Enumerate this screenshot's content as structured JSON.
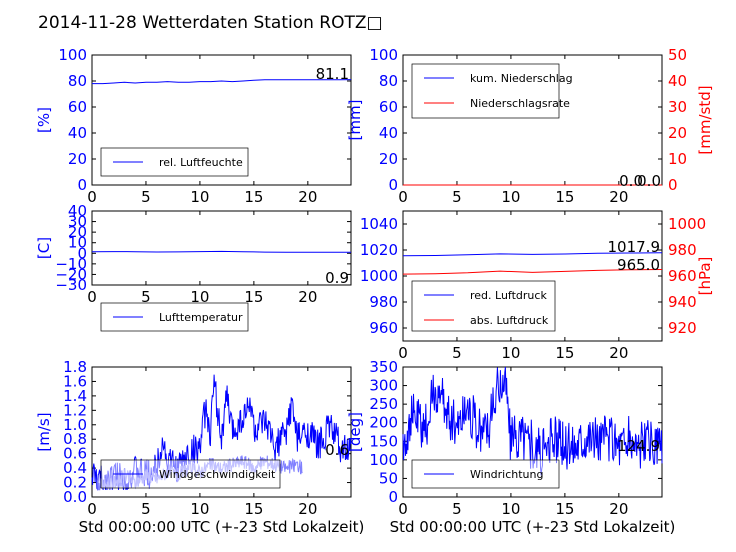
{
  "figure_title": "2014-11-28 Wetterdaten Station ROTZ□",
  "colors": {
    "primary": "#0000ff",
    "secondary": "#ff0000",
    "light": "#8080ff"
  },
  "chart_data": [
    {
      "type": "line",
      "ylabel": "[%]",
      "xlabel": "",
      "xlim": [
        0,
        24
      ],
      "ylim": [
        0,
        100
      ],
      "xticks": [
        "0",
        "5",
        "10",
        "15",
        "20"
      ],
      "yticks": [
        "0",
        "20",
        "40",
        "60",
        "80",
        "100"
      ],
      "last_labels": [
        "81.1"
      ],
      "legend_position": "lower-left",
      "series": [
        {
          "name": "rel. Luftfeuchte",
          "color": "#0000ff",
          "x": [
            0,
            1,
            2,
            3,
            4,
            5,
            6,
            7,
            8,
            9,
            10,
            11,
            12,
            13,
            14,
            15,
            16,
            17,
            18,
            19,
            20,
            21,
            22,
            23,
            24
          ],
          "values": [
            78,
            78,
            78.5,
            79,
            78.5,
            79,
            79,
            79.5,
            79,
            79,
            79.5,
            79.5,
            80,
            79.5,
            80,
            80.5,
            81,
            81,
            81,
            81,
            81,
            81,
            81,
            81,
            81.1
          ]
        }
      ]
    },
    {
      "type": "line",
      "ylabel": "[mm]",
      "ylabel_right": "[mm/std]",
      "xlabel": "",
      "xlim": [
        0,
        24
      ],
      "ylim": [
        0,
        100
      ],
      "ylim_right": [
        0,
        50
      ],
      "xticks": [
        "0",
        "5",
        "10",
        "15",
        "20"
      ],
      "yticks": [
        "0",
        "20",
        "40",
        "60",
        "80",
        "100"
      ],
      "yticks_right": [
        "0",
        "10",
        "20",
        "30",
        "40",
        "50"
      ],
      "last_labels": [
        "0.0",
        "0.0"
      ],
      "legend_position": "upper-left",
      "series": [
        {
          "name": "kum. Niederschlag",
          "color": "#0000ff",
          "axis": "left",
          "x": [
            0,
            24
          ],
          "values": [
            0,
            0
          ]
        },
        {
          "name": "Niederschlagsrate",
          "color": "#ff0000",
          "axis": "right",
          "x": [
            0,
            24
          ],
          "values": [
            0,
            0
          ]
        }
      ]
    },
    {
      "type": "line",
      "ylabel": "[C]",
      "xlabel": "",
      "xlim": [
        0,
        24
      ],
      "ylim": [
        -30,
        40
      ],
      "xticks": [
        "0",
        "5",
        "10",
        "15",
        "20"
      ],
      "yticks": [
        "−30",
        "−20",
        "−10",
        "0",
        "10",
        "20",
        "30",
        "40"
      ],
      "last_labels": [
        "0.9"
      ],
      "legend_position": "lower-left",
      "series": [
        {
          "name": "Lufttemperatur",
          "color": "#0000ff",
          "x": [
            0,
            2,
            4,
            6,
            8,
            10,
            12,
            14,
            16,
            18,
            20,
            22,
            24
          ],
          "values": [
            1.5,
            1.6,
            1.5,
            1.2,
            1.3,
            1.6,
            1.8,
            1.5,
            1.1,
            1.0,
            0.9,
            0.9,
            0.9
          ]
        }
      ]
    },
    {
      "type": "line",
      "ylabel": "",
      "ylabel_right": "[hPa]",
      "xlabel": "",
      "xlim": [
        0,
        24
      ],
      "ylim": [
        950,
        1050
      ],
      "ylim_right": [
        910,
        1010
      ],
      "xticks": [
        "0",
        "5",
        "10",
        "15",
        "20"
      ],
      "yticks": [
        "960",
        "980",
        "1000",
        "1020",
        "1040"
      ],
      "yticks_right": [
        "920",
        "940",
        "960",
        "980",
        "1000"
      ],
      "last_labels": [
        "1017.9",
        "965.0"
      ],
      "legend_position": "lower-left",
      "series": [
        {
          "name": "red. Luftdruck",
          "color": "#0000ff",
          "axis": "left",
          "x": [
            0,
            3,
            6,
            9,
            12,
            15,
            18,
            21,
            24
          ],
          "values": [
            1015.5,
            1015.8,
            1016.3,
            1017,
            1016.6,
            1016.9,
            1017.5,
            1017.7,
            1017.9
          ]
        },
        {
          "name": "abs. Luftdruck",
          "color": "#ff0000",
          "axis": "right",
          "x": [
            0,
            3,
            6,
            9,
            12,
            15,
            18,
            21,
            24
          ],
          "values": [
            961.5,
            961.8,
            962.5,
            963.8,
            962.8,
            963.5,
            964.3,
            964.8,
            965.0
          ]
        }
      ]
    },
    {
      "type": "line",
      "ylabel": "[m/s]",
      "xlabel": "Std 00:00:00 UTC (+-23 Std Lokalzeit)",
      "xlim": [
        0,
        24
      ],
      "ylim": [
        0,
        1.8
      ],
      "xticks": [
        "0",
        "5",
        "10",
        "15",
        "20"
      ],
      "yticks": [
        "0.0",
        "0.2",
        "0.4",
        "0.6",
        "0.8",
        "1.0",
        "1.2",
        "1.4",
        "1.6",
        "1.8"
      ],
      "last_labels": [
        "0.6"
      ],
      "legend_position": "lower-left",
      "series": [
        {
          "name": "Windgeschwindigkeit",
          "color": "#0000ff",
          "x": [
            0,
            1,
            2,
            3,
            4,
            5,
            6,
            6.5,
            7,
            8,
            9,
            10,
            10.5,
            11,
            11.3,
            12,
            12.5,
            13,
            14,
            14.8,
            15,
            16,
            17,
            18,
            18.5,
            19,
            20,
            21,
            22,
            23,
            24
          ],
          "values": [
            0.3,
            0.2,
            0.3,
            0.25,
            0.35,
            0.3,
            0.4,
            0.8,
            0.5,
            0.4,
            0.6,
            0.7,
            1.2,
            0.9,
            1.6,
            0.8,
            1.4,
            0.9,
            1.1,
            1.3,
            0.9,
            1.0,
            0.7,
            0.9,
            1.3,
            0.8,
            0.9,
            0.7,
            1.0,
            0.7,
            0.6
          ]
        },
        {
          "name": "",
          "color": "#8080ff",
          "x": [
            0.5,
            2,
            3,
            4,
            5,
            6,
            7,
            8,
            9,
            10,
            11,
            12,
            13,
            14,
            15,
            16,
            17,
            18,
            19,
            19.5
          ],
          "values": [
            0.15,
            0.2,
            0.3,
            0.2,
            0.3,
            0.25,
            0.35,
            0.3,
            0.4,
            0.35,
            0.45,
            0.4,
            0.45,
            0.5,
            0.4,
            0.5,
            0.45,
            0.4,
            0.45,
            0.4
          ]
        }
      ]
    },
    {
      "type": "line",
      "ylabel": "[deg]",
      "xlabel": "Std 00:00:00 UTC (+-23 Std Lokalzeit)",
      "xlim": [
        0,
        24
      ],
      "ylim": [
        0,
        360
      ],
      "xticks": [
        "0",
        "5",
        "10",
        "15",
        "20"
      ],
      "yticks": [
        "0",
        "50",
        "100",
        "150",
        "200",
        "250",
        "300",
        "350"
      ],
      "last_labels": [
        "124.9"
      ],
      "legend_position": "lower-left",
      "series": [
        {
          "name": "Windrichtung",
          "color": "#0000ff",
          "x": [
            0,
            1,
            2,
            3,
            4,
            5,
            6,
            7,
            8,
            9,
            9.5,
            10,
            11,
            12,
            13,
            14,
            15,
            16,
            17,
            18,
            19,
            20,
            21,
            22,
            23,
            24
          ],
          "values": [
            150,
            230,
            180,
            300,
            240,
            200,
            260,
            180,
            200,
            320,
            330,
            150,
            180,
            140,
            120,
            160,
            140,
            150,
            180,
            160,
            170,
            150,
            160,
            140,
            150,
            125
          ]
        }
      ]
    }
  ]
}
